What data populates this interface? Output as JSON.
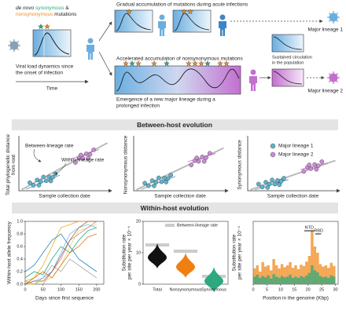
{
  "intro": {
    "de_novo": "de novo",
    "synonymous": "synonymous",
    "amp": "&",
    "nonsynonymous": "nonsynonymous",
    "mutations": "mutations",
    "viral_load": [
      "Viral load dynamics since",
      "the onset of infection"
    ],
    "time": "Time"
  },
  "acute": {
    "caption": "Gradual accumulation of mutations during acute infections"
  },
  "prolonged": {
    "caption": "Accelerated accumulation of nonsynonymous mutations",
    "emergence": [
      "Emergence of a new major lineage during a",
      "prolonged infection"
    ]
  },
  "population": {
    "caption": [
      "Sustained circulation",
      "in the population"
    ],
    "lineage1": "Major lineage 1",
    "lineage2": "Major lineage 2"
  },
  "between_host": {
    "title": "Between-host evolution",
    "panels": [
      {
        "ylabel": [
          "Total phylogenetic distance",
          "from root"
        ],
        "xlabel": "Sample collection date",
        "annotations": [
          "Between-lineage rate",
          "Within-lineage rate"
        ]
      },
      {
        "ylabel": [
          "Nonsynonymous distance"
        ],
        "xlabel": "Sample collection date"
      },
      {
        "ylabel": [
          "Synonymous distance"
        ],
        "xlabel": "Sample collection date"
      }
    ],
    "legend": [
      {
        "name": "Major lineage 1",
        "color": "#5fb4c9"
      },
      {
        "name": "Major lineage 2",
        "color": "#c78fd6"
      }
    ]
  },
  "within_host": {
    "title": "Within-host evolution"
  },
  "chart_data": [
    {
      "type": "line",
      "xlabel": "Days since first sequence",
      "ylabel": [
        "Within-host allele frequency"
      ],
      "x": [
        0,
        25,
        50,
        75,
        100,
        125,
        150,
        175,
        200
      ],
      "series": [
        {
          "color": "#e69f00",
          "values": [
            0.05,
            0.1,
            0.3,
            0.6,
            0.9,
            0.95,
            1.0,
            1.0,
            1.0
          ]
        },
        {
          "color": "#56b4e9",
          "values": [
            0.0,
            0.05,
            0.1,
            0.2,
            0.5,
            0.8,
            0.9,
            0.95,
            0.9
          ]
        },
        {
          "color": "#009e73",
          "values": [
            0.1,
            0.2,
            0.15,
            0.4,
            0.6,
            0.5,
            0.7,
            0.85,
            0.9
          ]
        },
        {
          "color": "#e8d23a",
          "values": [
            0.0,
            0.0,
            0.05,
            0.1,
            0.3,
            0.6,
            0.85,
            0.9,
            0.95
          ]
        },
        {
          "color": "#0072b2",
          "values": [
            0.2,
            0.3,
            0.5,
            0.7,
            0.8,
            0.6,
            0.4,
            0.3,
            0.2
          ]
        },
        {
          "color": "#d55e00",
          "values": [
            0.0,
            0.1,
            0.2,
            0.1,
            0.3,
            0.5,
            0.6,
            0.75,
            0.8
          ]
        },
        {
          "color": "#cc79a7",
          "values": [
            null,
            null,
            0.0,
            0.2,
            0.4,
            0.7,
            0.8,
            0.9,
            1.0
          ]
        },
        {
          "color": "#999999",
          "values": [
            0.05,
            0.0,
            0.1,
            0.3,
            0.2,
            0.4,
            0.3,
            0.2,
            0.1
          ]
        },
        {
          "color": "#8b5a2b",
          "values": [
            0.0,
            0.05,
            0.05,
            0.2,
            0.45,
            0.7,
            0.9,
            1.0,
            1.0
          ]
        }
      ],
      "xlim": [
        0,
        220
      ],
      "xticks": [
        0,
        50,
        100,
        150,
        200
      ],
      "ylim": [
        0,
        1
      ],
      "yticks": [
        {
          "value": 0,
          "label": "0.0"
        },
        0.2,
        0.4,
        0.6,
        0.8,
        {
          "value": 1,
          "label": "1.0"
        }
      ]
    },
    {
      "type": "violin",
      "ylabel": [
        "Substitution rate",
        "per site per year × 10⁻⁴"
      ],
      "categories": [
        "Total",
        "Nonsynonymous",
        "Synonymous"
      ],
      "values": [
        8.5,
        5.5,
        1.0
      ],
      "colors": [
        "#111111",
        "#f07f12",
        "#2ea87e"
      ],
      "reference": {
        "name": "Between-lineage rate",
        "color": "#cccccc",
        "values": [
          12.5,
          10.5,
          2.5
        ]
      },
      "ylim": [
        0,
        20
      ],
      "yticks": [
        0,
        10,
        20
      ]
    },
    {
      "type": "histogram",
      "xlabel": "Position in the genome (Kbp)",
      "ylabel": [
        "Substitution rate",
        "per site per year × 10⁻⁴"
      ],
      "annotations": [
        "NTD",
        "RBD"
      ],
      "bins": [
        0,
        1,
        2,
        3,
        4,
        5,
        6,
        7,
        8,
        9,
        10,
        11,
        12,
        13,
        14,
        15,
        16,
        17,
        18,
        19,
        20,
        21,
        22,
        23,
        24,
        25,
        26,
        27,
        28,
        29,
        30
      ],
      "series": [
        {
          "color": "#f08a1c",
          "values": [
            2.5,
            3,
            2,
            3.5,
            2.8,
            3,
            2.2,
            4,
            3,
            2.5,
            3.2,
            2.7,
            3,
            3.5,
            2.6,
            3,
            2.4,
            3.1,
            2.9,
            3.6,
            4.5,
            8.5,
            6,
            5,
            3.2,
            2.8,
            3,
            2.6,
            3.4,
            2.9
          ]
        },
        {
          "color": "#2ea87e",
          "values": [
            1.2,
            1.5,
            1,
            1.3,
            1.1,
            1.4,
            0.9,
            1.6,
            1.2,
            1,
            1.3,
            1.1,
            1.2,
            1.5,
            1,
            1.2,
            1,
            1.3,
            1.1,
            1.4,
            1.8,
            3,
            2.2,
            1.9,
            1.3,
            1.1,
            1.2,
            1,
            1.4,
            1.2
          ]
        }
      ],
      "xlim": [
        0,
        31
      ],
      "xticks": [
        0,
        5,
        10,
        15,
        20,
        25,
        30
      ],
      "ylim": [
        0,
        10
      ]
    }
  ]
}
